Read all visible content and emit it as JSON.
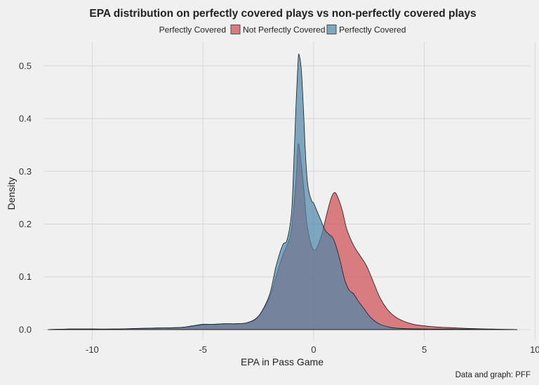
{
  "chart_data": {
    "type": "area",
    "title": "EPA distribution on perfectly covered plays vs non-perfectly covered plays",
    "legend": {
      "title": "Perfectly Covered",
      "position": "top",
      "entries": [
        "Not Perfectly Covered",
        "Perfectly Covered"
      ]
    },
    "xlabel": "EPA in Pass Game",
    "ylabel": "Density",
    "caption": "Data and graph: PFF",
    "xlim": [
      -12.2,
      9.8
    ],
    "ylim": [
      -0.02,
      0.545
    ],
    "x_ticks": [
      -10,
      -5,
      0,
      5,
      10
    ],
    "x_tick_labels": [
      "-10",
      "-5",
      "0",
      "5",
      "10"
    ],
    "y_ticks": [
      0.0,
      0.1,
      0.2,
      0.3,
      0.4,
      0.5
    ],
    "y_tick_labels": [
      "0.0",
      "0.1",
      "0.2",
      "0.3",
      "0.4",
      "0.5"
    ],
    "grid": true,
    "series": [
      {
        "name": "Not Perfectly Covered",
        "color": "#cd4a4f",
        "points": [
          [
            -12,
            0
          ],
          [
            -11,
            0.001
          ],
          [
            -10,
            0.001
          ],
          [
            -9,
            0.001
          ],
          [
            -8,
            0.002
          ],
          [
            -7,
            0.003
          ],
          [
            -6,
            0.004
          ],
          [
            -5.5,
            0.006
          ],
          [
            -5,
            0.009
          ],
          [
            -4.5,
            0.01
          ],
          [
            -4,
            0.011
          ],
          [
            -3.5,
            0.011
          ],
          [
            -3,
            0.013
          ],
          [
            -2.5,
            0.025
          ],
          [
            -2,
            0.06
          ],
          [
            -1.7,
            0.1
          ],
          [
            -1.4,
            0.14
          ],
          [
            -1.2,
            0.16
          ],
          [
            -1.0,
            0.19
          ],
          [
            -0.8,
            0.28
          ],
          [
            -0.7,
            0.35
          ],
          [
            -0.6,
            0.33
          ],
          [
            -0.45,
            0.27
          ],
          [
            -0.3,
            0.2
          ],
          [
            -0.1,
            0.16
          ],
          [
            0.05,
            0.15
          ],
          [
            0.2,
            0.16
          ],
          [
            0.4,
            0.185
          ],
          [
            0.6,
            0.22
          ],
          [
            0.8,
            0.25
          ],
          [
            0.95,
            0.26
          ],
          [
            1.1,
            0.25
          ],
          [
            1.3,
            0.225
          ],
          [
            1.5,
            0.19
          ],
          [
            1.8,
            0.16
          ],
          [
            2.1,
            0.14
          ],
          [
            2.4,
            0.12
          ],
          [
            2.7,
            0.09
          ],
          [
            3.0,
            0.06
          ],
          [
            3.3,
            0.04
          ],
          [
            3.6,
            0.027
          ],
          [
            4.0,
            0.017
          ],
          [
            4.5,
            0.01
          ],
          [
            5.0,
            0.007
          ],
          [
            5.5,
            0.005
          ],
          [
            6.0,
            0.004
          ],
          [
            6.5,
            0.003
          ],
          [
            7.0,
            0.002
          ],
          [
            8.0,
            0.001
          ],
          [
            9.2,
            0
          ]
        ]
      },
      {
        "name": "Perfectly Covered",
        "color": "#4d86aa",
        "points": [
          [
            -12,
            0
          ],
          [
            -11,
            0.001
          ],
          [
            -10,
            0.001
          ],
          [
            -9,
            0.001
          ],
          [
            -8,
            0.002
          ],
          [
            -7,
            0.003
          ],
          [
            -6,
            0.004
          ],
          [
            -5.5,
            0.007
          ],
          [
            -5,
            0.01
          ],
          [
            -4.5,
            0.01
          ],
          [
            -4,
            0.011
          ],
          [
            -3.5,
            0.011
          ],
          [
            -3,
            0.013
          ],
          [
            -2.5,
            0.025
          ],
          [
            -2,
            0.065
          ],
          [
            -1.7,
            0.12
          ],
          [
            -1.4,
            0.16
          ],
          [
            -1.2,
            0.17
          ],
          [
            -1.0,
            0.22
          ],
          [
            -0.9,
            0.31
          ],
          [
            -0.8,
            0.42
          ],
          [
            -0.7,
            0.51
          ],
          [
            -0.65,
            0.52
          ],
          [
            -0.55,
            0.49
          ],
          [
            -0.45,
            0.41
          ],
          [
            -0.35,
            0.32
          ],
          [
            -0.25,
            0.27
          ],
          [
            -0.1,
            0.245
          ],
          [
            0.0,
            0.24
          ],
          [
            0.1,
            0.23
          ],
          [
            0.3,
            0.21
          ],
          [
            0.5,
            0.19
          ],
          [
            0.7,
            0.18
          ],
          [
            0.85,
            0.175
          ],
          [
            1.0,
            0.16
          ],
          [
            1.2,
            0.13
          ],
          [
            1.4,
            0.095
          ],
          [
            1.6,
            0.075
          ],
          [
            1.8,
            0.068
          ],
          [
            2.0,
            0.055
          ],
          [
            2.3,
            0.038
          ],
          [
            2.6,
            0.022
          ],
          [
            3.0,
            0.01
          ],
          [
            3.5,
            0.004
          ],
          [
            4.0,
            0.002
          ],
          [
            5.0,
            0.001
          ],
          [
            6.0,
            0.001
          ],
          [
            7.5,
            0.0005
          ],
          [
            9.2,
            0
          ]
        ]
      }
    ]
  }
}
